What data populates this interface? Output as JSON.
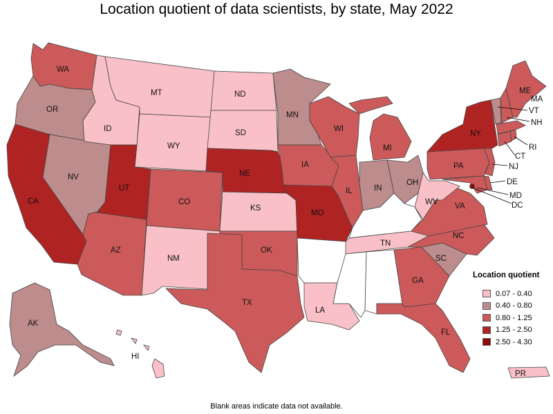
{
  "title": "Location quotient of data scientists, by state, May 2022",
  "footnote": "Blank areas indicate data not available.",
  "legend": {
    "title": "Location quotient",
    "items": [
      {
        "label": "0.07 - 0.40",
        "color": "#f9c1c7"
      },
      {
        "label": "0.40 - 0.80",
        "color": "#bd8c8c"
      },
      {
        "label": "0.80 - 1.25",
        "color": "#cd5a5a"
      },
      {
        "label": "1.25 - 2.50",
        "color": "#b02323"
      },
      {
        "label": "2.50 - 4.30",
        "color": "#8b0a0a"
      }
    ]
  },
  "no_data_color": "#ffffff",
  "chart_data": {
    "type": "choropleth",
    "states": [
      {
        "code": "WA",
        "class": 2
      },
      {
        "code": "OR",
        "class": 1
      },
      {
        "code": "CA",
        "class": 3
      },
      {
        "code": "NV",
        "class": 1
      },
      {
        "code": "ID",
        "class": 0
      },
      {
        "code": "MT",
        "class": 0
      },
      {
        "code": "WY",
        "class": 0
      },
      {
        "code": "UT",
        "class": 3
      },
      {
        "code": "AZ",
        "class": 2
      },
      {
        "code": "CO",
        "class": 2
      },
      {
        "code": "NM",
        "class": 0
      },
      {
        "code": "ND",
        "class": 0
      },
      {
        "code": "SD",
        "class": 0
      },
      {
        "code": "NE",
        "class": 3
      },
      {
        "code": "KS",
        "class": 0
      },
      {
        "code": "OK",
        "class": 2
      },
      {
        "code": "TX",
        "class": 2
      },
      {
        "code": "MN",
        "class": 1
      },
      {
        "code": "IA",
        "class": 2
      },
      {
        "code": "MO",
        "class": 3
      },
      {
        "code": "AR",
        "class": null
      },
      {
        "code": "LA",
        "class": 0
      },
      {
        "code": "WI",
        "class": 2
      },
      {
        "code": "IL",
        "class": 2
      },
      {
        "code": "MI",
        "class": 2
      },
      {
        "code": "IN",
        "class": 1
      },
      {
        "code": "OH",
        "class": 1
      },
      {
        "code": "KY",
        "class": null
      },
      {
        "code": "TN",
        "class": 0
      },
      {
        "code": "MS",
        "class": null
      },
      {
        "code": "AL",
        "class": null
      },
      {
        "code": "GA",
        "class": 2
      },
      {
        "code": "FL",
        "class": 2
      },
      {
        "code": "SC",
        "class": 1
      },
      {
        "code": "NC",
        "class": 2
      },
      {
        "code": "VA",
        "class": 2
      },
      {
        "code": "WV",
        "class": 0
      },
      {
        "code": "PA",
        "class": 2
      },
      {
        "code": "NY",
        "class": 3
      },
      {
        "code": "VT",
        "class": 1
      },
      {
        "code": "NH",
        "class": 2
      },
      {
        "code": "ME",
        "class": 2
      },
      {
        "code": "MA",
        "class": 2
      },
      {
        "code": "RI",
        "class": 2
      },
      {
        "code": "CT",
        "class": 2
      },
      {
        "code": "NJ",
        "class": 2
      },
      {
        "code": "DE",
        "class": 2
      },
      {
        "code": "MD",
        "class": 2
      },
      {
        "code": "DC",
        "class": 4
      },
      {
        "code": "AK",
        "class": 1
      },
      {
        "code": "HI",
        "class": 0
      },
      {
        "code": "PR",
        "class": 0
      }
    ]
  }
}
